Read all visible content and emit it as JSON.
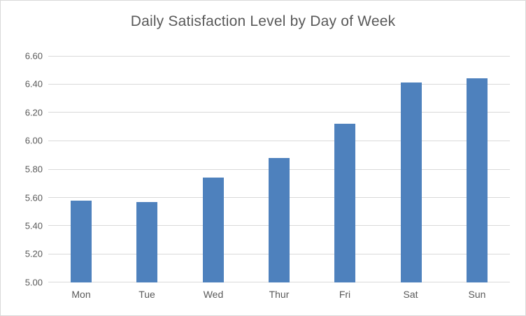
{
  "chart_data": {
    "type": "bar",
    "title": "Daily Satisfaction Level by Day of Week",
    "xlabel": "",
    "ylabel": "",
    "categories": [
      "Mon",
      "Tue",
      "Wed",
      "Thur",
      "Fri",
      "Sat",
      "Sun"
    ],
    "values": [
      5.58,
      5.57,
      5.74,
      5.88,
      6.12,
      6.41,
      6.44
    ],
    "ylim": [
      5.0,
      6.6
    ],
    "y_tick_step": 0.2,
    "y_tick_labels": [
      "5.00",
      "5.20",
      "5.40",
      "5.60",
      "5.80",
      "6.00",
      "6.20",
      "6.40",
      "6.60"
    ],
    "grid": true,
    "legend": false,
    "colors": {
      "bar": "#4E81BD",
      "gridline": "#D9D9D9",
      "border": "#D9D9D9",
      "text": "#595959",
      "background": "#FFFFFF"
    }
  }
}
